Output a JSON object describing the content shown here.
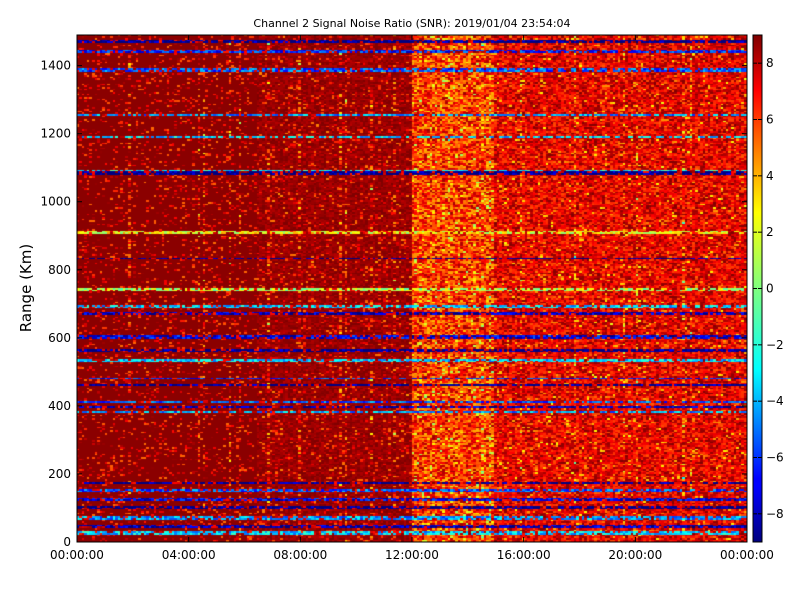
{
  "chart_data": {
    "type": "heatmap",
    "title": "Channel 2 Signal Noise Ratio (SNR): 2019/01/04 23:54:04",
    "xlabel": "",
    "ylabel": "Range (Km)",
    "x_tick_labels": [
      "00:00:00",
      "04:00:00",
      "08:00:00",
      "12:00:00",
      "16:00:00",
      "20:00:00",
      "00:00:00"
    ],
    "x_range_hours": [
      0,
      24
    ],
    "y_tick_labels": [
      "0",
      "200",
      "400",
      "600",
      "800",
      "1000",
      "1200",
      "1400"
    ],
    "y_ticks": [
      0,
      200,
      400,
      600,
      800,
      1000,
      1200,
      1400
    ],
    "ylim": [
      0,
      1490
    ],
    "colorbar": {
      "colormap": "jet",
      "range": [
        -9,
        9
      ],
      "ticks": [
        -8,
        -6,
        -4,
        -2,
        0,
        2,
        4,
        6,
        8
      ],
      "tick_labels": [
        "−8",
        "−6",
        "−4",
        "−2",
        "0",
        "2",
        "4",
        "6",
        "8"
      ]
    },
    "grid": false,
    "low_snr_bands_km": [
      {
        "km": 25,
        "value": -3
      },
      {
        "km": 45,
        "value": -8
      },
      {
        "km": 70,
        "value": -4
      },
      {
        "km": 100,
        "value": -9
      },
      {
        "km": 125,
        "value": -7
      },
      {
        "km": 150,
        "value": -5
      },
      {
        "km": 172,
        "value": -9
      },
      {
        "km": 380,
        "value": -4
      },
      {
        "km": 395,
        "value": -8
      },
      {
        "km": 410,
        "value": -5
      },
      {
        "km": 460,
        "value": -9
      },
      {
        "km": 480,
        "value": -6
      },
      {
        "km": 530,
        "value": -3
      },
      {
        "km": 560,
        "value": -9
      },
      {
        "km": 600,
        "value": -7
      },
      {
        "km": 670,
        "value": -8
      },
      {
        "km": 690,
        "value": -3
      },
      {
        "km": 740,
        "value": 1
      },
      {
        "km": 832,
        "value": -9
      },
      {
        "km": 908,
        "value": 2
      },
      {
        "km": 1082,
        "value": -9
      },
      {
        "km": 1090,
        "value": -2
      },
      {
        "km": 1190,
        "value": -3
      },
      {
        "km": 1255,
        "value": -4
      },
      {
        "km": 1385,
        "value": -5
      },
      {
        "km": 1440,
        "value": -6
      },
      {
        "km": 1470,
        "value": -9
      }
    ]
  }
}
